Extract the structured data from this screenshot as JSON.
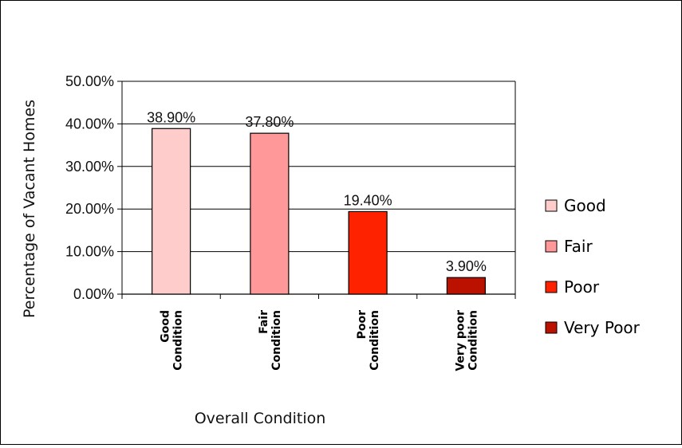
{
  "chart_data": {
    "type": "bar",
    "title": "",
    "xlabel": "Overall Condition",
    "ylabel": "Percentage of Vacant Homes",
    "categories": [
      "Good Condition",
      "Fair Condition",
      "Poor Condition",
      "Very poor Condition"
    ],
    "category_lines": [
      [
        "Good",
        "Condition"
      ],
      [
        "Fair",
        "Condition"
      ],
      [
        "Poor",
        "Condition"
      ],
      [
        "Very poor",
        "Condition"
      ]
    ],
    "values": [
      38.9,
      37.8,
      19.4,
      3.9
    ],
    "data_labels": [
      "38.90%",
      "37.80%",
      "19.40%",
      "3.90%"
    ],
    "ylim": [
      0,
      50
    ],
    "yticks": [
      0,
      10,
      20,
      30,
      40,
      50
    ],
    "ytick_labels": [
      "0.00%",
      "10.00%",
      "20.00%",
      "30.00%",
      "40.00%",
      "50.00%"
    ],
    "colors": [
      "#ffcccc",
      "#ff9999",
      "#ff2200",
      "#bb1100"
    ],
    "legend": {
      "position": "right",
      "entries": [
        "Good",
        "Fair",
        "Poor",
        "Very Poor"
      ]
    },
    "grid": true
  }
}
